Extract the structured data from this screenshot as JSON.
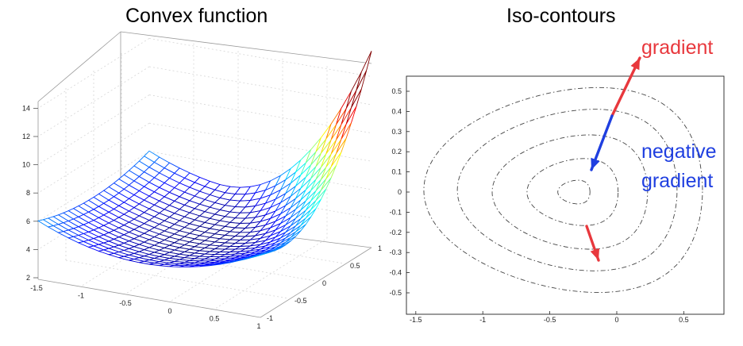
{
  "titles": {
    "left": "Convex function",
    "right": "Iso-contours"
  },
  "surface_plot": {
    "z_ticks": [
      "2",
      "4",
      "6",
      "8",
      "10",
      "12",
      "14"
    ],
    "x_ticks": [
      "-1.5",
      "-1",
      "-0.5",
      "0",
      "0.5",
      "1"
    ],
    "y_ticks": [
      "-1",
      "-0.5",
      "0",
      "0.5",
      "1"
    ],
    "colormap": "jet"
  },
  "contour_plot": {
    "x_ticks": [
      "-1.5",
      "-1",
      "-0.5",
      "0",
      "0.5"
    ],
    "y_ticks": [
      "0.5",
      "0.4",
      "0.3",
      "0.2",
      "0.1",
      "0",
      "-0.1",
      "-0.2",
      "-0.3",
      "-0.4",
      "-0.5"
    ],
    "line_style": "dash-dot"
  },
  "annotations": {
    "gradient": {
      "text": "gradient",
      "color": "#e8383d"
    },
    "negative_gradient": {
      "line1": "negative",
      "line2": "gradient",
      "color": "#1f3fe0"
    }
  }
}
